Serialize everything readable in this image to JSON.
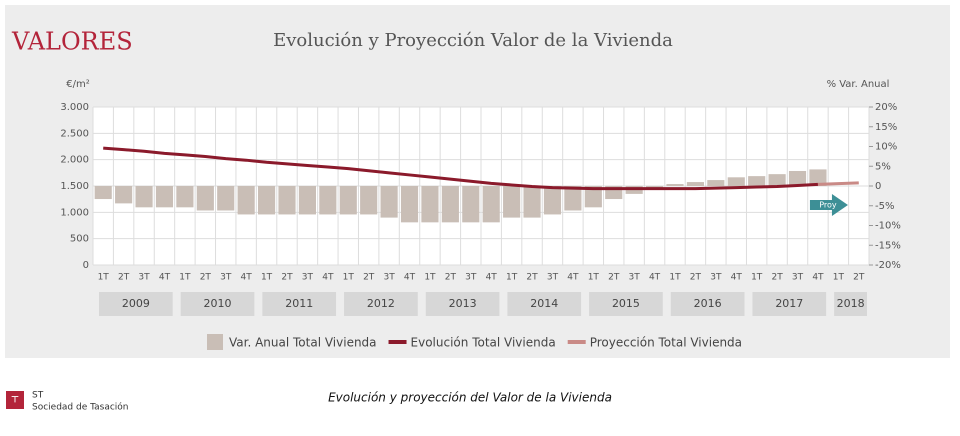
{
  "brand": "VALORES",
  "chart_data": {
    "type": "bar-line",
    "title": "Evolución y Proyección Valor de la Vivienda",
    "ylabel": "€/m²",
    "y2label": "% Var. Anual",
    "categories": [
      "1T",
      "2T",
      "3T",
      "4T",
      "1T",
      "2T",
      "3T",
      "4T",
      "1T",
      "2T",
      "3T",
      "4T",
      "1T",
      "2T",
      "3T",
      "4T",
      "1T",
      "2T",
      "3T",
      "4T",
      "1T",
      "2T",
      "3T",
      "4T",
      "1T",
      "2T",
      "3T",
      "4T",
      "1T",
      "2T",
      "3T",
      "4T",
      "1T",
      "2T",
      "3T",
      "4T",
      "1T",
      "2T"
    ],
    "years": [
      "2009",
      "2010",
      "2011",
      "2012",
      "2013",
      "2014",
      "2015",
      "2016",
      "2017",
      "2018"
    ],
    "series": [
      {
        "name": "Var. Anual Total Vivienda",
        "type": "bar",
        "axis": "y2",
        "color": "#c9beb6",
        "values": [
          -3.3,
          -4.4,
          -5.4,
          -5.4,
          -5.4,
          -6.2,
          -6.2,
          -7.2,
          -7.2,
          -7.2,
          -7.2,
          -7.2,
          -7.2,
          -7.2,
          -8,
          -9.2,
          -9.2,
          -9.2,
          -9.2,
          -9.2,
          -8,
          -8,
          -7.2,
          -6.2,
          -5.4,
          -3.3,
          -2,
          -0.8,
          0.5,
          1,
          1.5,
          2.2,
          2.5,
          3,
          3.8,
          4.2,
          null,
          null
        ]
      },
      {
        "name": "Evolución Total Vivienda",
        "type": "line",
        "color": "#8b1a2b",
        "values": [
          2220,
          2190,
          2160,
          2120,
          2090,
          2060,
          2020,
          1990,
          1950,
          1920,
          1890,
          1860,
          1830,
          1790,
          1750,
          1710,
          1670,
          1630,
          1590,
          1550,
          1520,
          1490,
          1470,
          1460,
          1450,
          1450,
          1450,
          1450,
          1450,
          1450,
          1460,
          1470,
          1480,
          1490,
          1510,
          1530,
          null,
          null
        ]
      },
      {
        "name": "Proyección Total Vivienda",
        "type": "line",
        "color": "#c98a86",
        "values": [
          null,
          null,
          null,
          null,
          null,
          null,
          null,
          null,
          null,
          null,
          null,
          null,
          null,
          null,
          null,
          null,
          null,
          null,
          null,
          null,
          null,
          null,
          null,
          null,
          null,
          null,
          null,
          null,
          null,
          null,
          null,
          null,
          null,
          null,
          null,
          1530,
          1545,
          1560
        ]
      }
    ],
    "ylim": [
      0,
      3000
    ],
    "yticks": [
      0,
      500,
      {
        "value": 1000,
        "label": "1.000"
      },
      {
        "value": 1500,
        "label": "1.500"
      },
      {
        "value": 2000,
        "label": "2.000"
      },
      {
        "value": 2500,
        "label": "2.500"
      },
      {
        "value": 3000,
        "label": "3.000"
      }
    ],
    "y2lim": [
      -20,
      20
    ],
    "y2ticks": [
      {
        "value": -20,
        "label": "-20%"
      },
      {
        "value": -15,
        "label": "-15%"
      },
      {
        "value": -10,
        "label": "-10%"
      },
      {
        "value": -5,
        "label": "-5%"
      },
      0,
      {
        "value": 5,
        "label": "5%"
      },
      {
        "value": 10,
        "label": "10%"
      },
      {
        "value": 15,
        "label": "15%"
      },
      {
        "value": 20,
        "label": "20%"
      }
    ],
    "annotation": "Proy",
    "grid": true
  },
  "footer": {
    "logo": "ST",
    "company": "Sociedad de Tasación",
    "caption": "Evolución y proyección del Valor de la Vivienda"
  }
}
